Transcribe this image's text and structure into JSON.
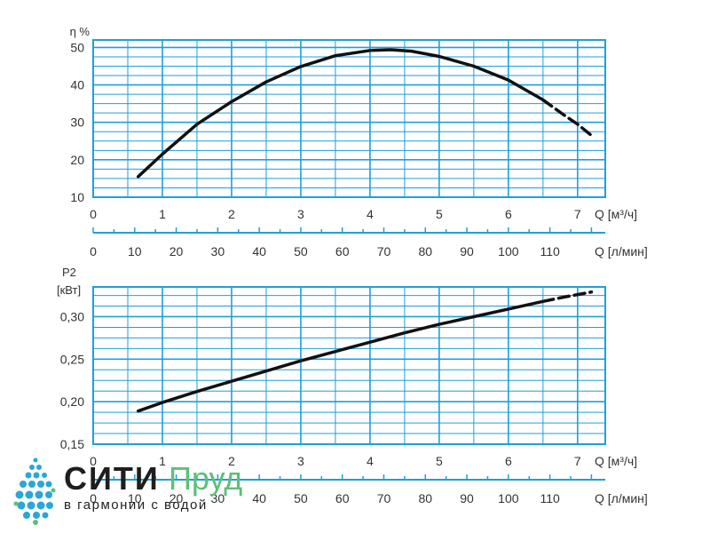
{
  "colors": {
    "grid": "#1ea0d8",
    "curve": "#111111",
    "text": "#333333",
    "logo_dark": "#1e1e1e",
    "logo_green": "#5cc07a",
    "logo_blue": "#2aa6d8"
  },
  "chart_data": [
    {
      "type": "line",
      "title": "",
      "ylabel": "η %",
      "xlabel": "Q [м³/ч]",
      "xlabel_secondary": "Q [л/мин]",
      "xlim": [
        0,
        7.4
      ],
      "ylim": [
        10,
        52
      ],
      "x_ticks": [
        0,
        1,
        2,
        3,
        4,
        5,
        6,
        7
      ],
      "y_ticks": [
        10,
        20,
        30,
        40,
        50
      ],
      "x2_ticks": [
        0,
        10,
        20,
        30,
        40,
        50,
        60,
        70,
        80,
        90,
        100,
        110
      ],
      "series": [
        {
          "style": "solid",
          "x": [
            0.65,
            1.0,
            1.5,
            2.0,
            2.5,
            3.0,
            3.5,
            4.0,
            4.3,
            4.6,
            5.0,
            5.5,
            6.0,
            6.5
          ],
          "y": [
            15.5,
            21.5,
            29.5,
            35.5,
            40.8,
            44.9,
            47.8,
            49.2,
            49.4,
            49.0,
            47.6,
            45.0,
            41.3,
            36.0
          ]
        },
        {
          "style": "dashed",
          "x": [
            6.5,
            6.8,
            7.0,
            7.2
          ],
          "y": [
            36.0,
            32.0,
            29.5,
            26.5
          ]
        }
      ]
    },
    {
      "type": "line",
      "title": "",
      "ylabel": "P2",
      "ylabel_unit": "[кВт]",
      "xlabel": "Q [м³/ч]",
      "xlabel_secondary": "Q [л/мин]",
      "xlim": [
        0,
        7.4
      ],
      "ylim": [
        0.15,
        0.335
      ],
      "x_ticks": [
        0,
        1,
        2,
        3,
        4,
        5,
        6,
        7
      ],
      "y_ticks": [
        "0,15",
        "0,20",
        "0,25",
        "0,30"
      ],
      "y_tick_values": [
        0.15,
        0.2,
        0.25,
        0.3
      ],
      "x2_ticks": [
        0,
        10,
        20,
        30,
        40,
        50,
        60,
        70,
        80,
        90,
        100,
        110
      ],
      "series": [
        {
          "style": "solid",
          "x": [
            0.65,
            1.0,
            1.5,
            2.0,
            2.5,
            3.0,
            3.5,
            4.0,
            4.5,
            5.0,
            5.5,
            6.0,
            6.5
          ],
          "y": [
            0.189,
            0.199,
            0.212,
            0.224,
            0.236,
            0.248,
            0.259,
            0.27,
            0.281,
            0.291,
            0.3,
            0.309,
            0.318
          ]
        },
        {
          "style": "dashed",
          "x": [
            6.5,
            6.8,
            7.0,
            7.2
          ],
          "y": [
            0.318,
            0.323,
            0.326,
            0.329
          ]
        }
      ]
    }
  ],
  "logo": {
    "word1": "СИТИ",
    "word2": "Пруд",
    "tagline": "в гармонии с водой"
  }
}
